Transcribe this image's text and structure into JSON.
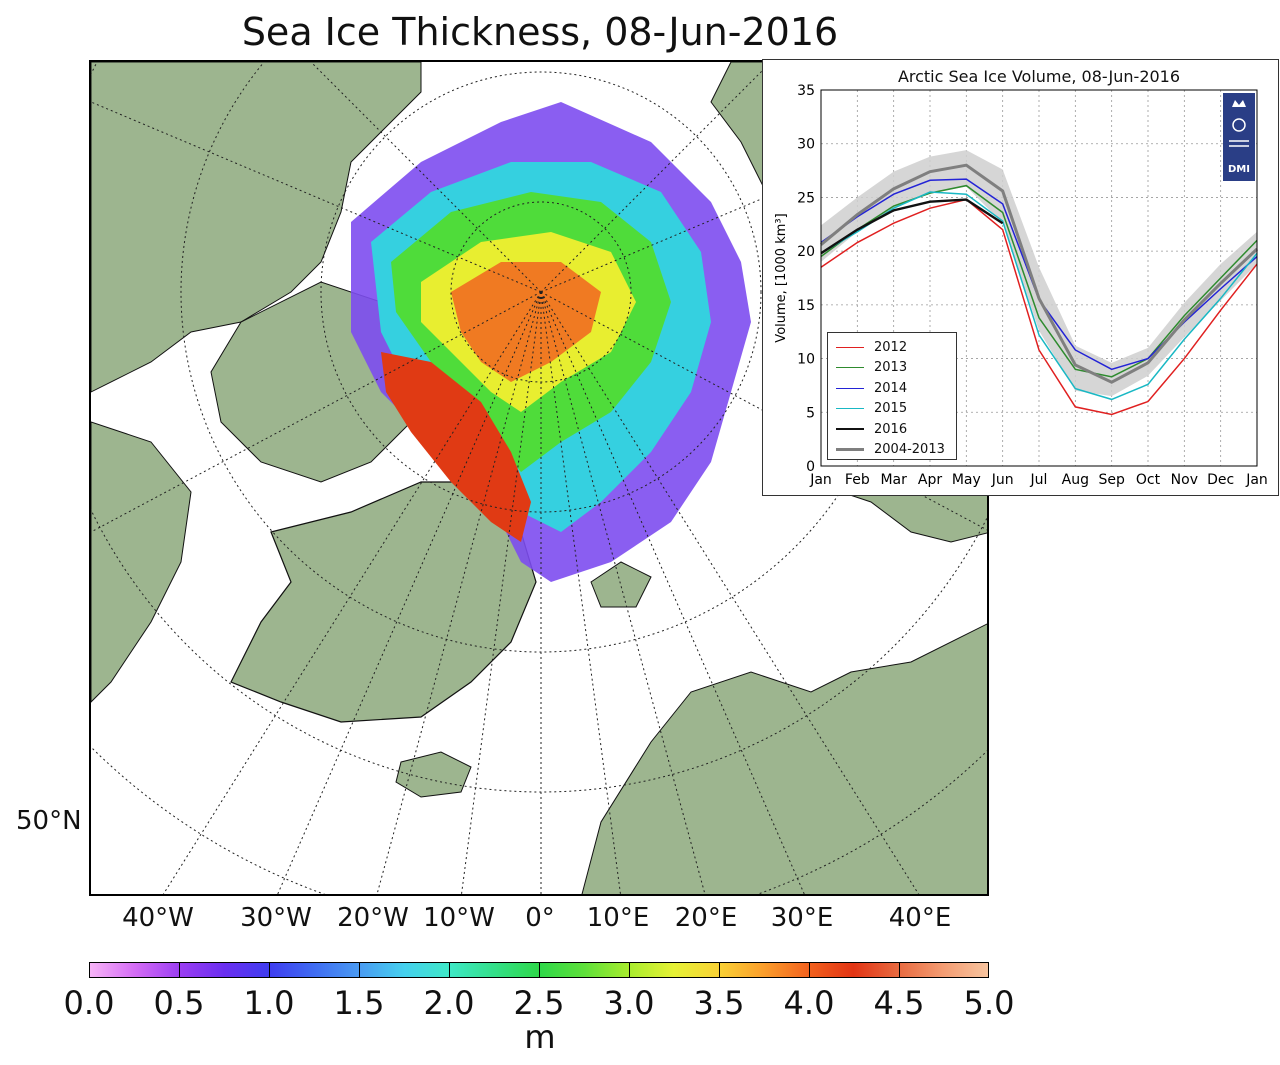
{
  "title": "Sea Ice Thickness, 08-Jun-2016",
  "map": {
    "lat_label": "50°N",
    "lon_labels": [
      "40°W",
      "30°W",
      "20°W",
      "10°W",
      "0°",
      "10°E",
      "20°E",
      "30°E",
      "40°E"
    ],
    "land_color": "#9db58f",
    "ocean_color": "#ffffff"
  },
  "colorbar": {
    "tick_labels": [
      "0.0",
      "0.5",
      "1.0",
      "1.5",
      "2.0",
      "2.5",
      "3.0",
      "3.5",
      "4.0",
      "4.5",
      "5.0"
    ],
    "unit": "m"
  },
  "inset": {
    "title": "Arctic Sea Ice Volume, 08-Jun-2016",
    "logo_text": "DMI",
    "logo_color": "#2a3e86"
  },
  "chart_data": {
    "type": "line",
    "title": "Arctic Sea Ice Volume, 08-Jun-2016",
    "ylabel": "Volume, [1000 km³]",
    "xlabel": "",
    "x": [
      "Jan",
      "Feb",
      "Mar",
      "Apr",
      "May",
      "Jun",
      "Jul",
      "Aug",
      "Sep",
      "Oct",
      "Nov",
      "Dec",
      "Jan"
    ],
    "ylim": [
      0,
      35
    ],
    "yticks": [
      0,
      5,
      10,
      15,
      20,
      25,
      30,
      35
    ],
    "grid": true,
    "legend_position": "lower-left",
    "series": [
      {
        "name": "2012",
        "color": "#e02020",
        "values": [
          18.5,
          20.8,
          22.6,
          24.0,
          24.8,
          22.0,
          10.8,
          5.5,
          4.8,
          6.0,
          10.0,
          14.5,
          18.8
        ]
      },
      {
        "name": "2013",
        "color": "#2e8b2e",
        "values": [
          19.5,
          22.0,
          24.2,
          25.4,
          26.1,
          23.6,
          13.8,
          9.0,
          8.3,
          10.0,
          14.0,
          17.5,
          21.0
        ]
      },
      {
        "name": "2014",
        "color": "#2323d6",
        "values": [
          20.8,
          23.2,
          25.3,
          26.6,
          26.7,
          24.4,
          15.5,
          10.8,
          9.0,
          10.0,
          13.4,
          16.5,
          19.5
        ]
      },
      {
        "name": "2015",
        "color": "#19b8c4",
        "values": [
          19.8,
          21.8,
          24.0,
          25.5,
          25.3,
          22.8,
          12.2,
          7.2,
          6.2,
          7.6,
          11.8,
          15.6,
          19.8
        ]
      },
      {
        "name": "2016",
        "color": "#111111",
        "values": [
          19.8,
          22.0,
          23.8,
          24.6,
          24.8,
          22.6,
          null,
          null,
          null,
          null,
          null,
          null,
          null
        ]
      },
      {
        "name": "2004-2013",
        "color": "#7f7f7f",
        "values": [
          20.6,
          23.4,
          25.8,
          27.4,
          28.0,
          25.6,
          15.6,
          9.4,
          7.8,
          9.6,
          13.6,
          17.0,
          20.2
        ]
      }
    ],
    "band": {
      "name": "2004-2013 range",
      "lower": [
        19.0,
        21.8,
        24.0,
        25.4,
        26.0,
        22.6,
        12.6,
        7.0,
        6.5,
        8.4,
        12.0,
        15.4,
        18.8
      ],
      "upper": [
        22.4,
        25.0,
        27.4,
        28.8,
        29.4,
        27.6,
        18.5,
        11.2,
        9.6,
        11.0,
        15.2,
        18.8,
        21.8
      ]
    }
  }
}
